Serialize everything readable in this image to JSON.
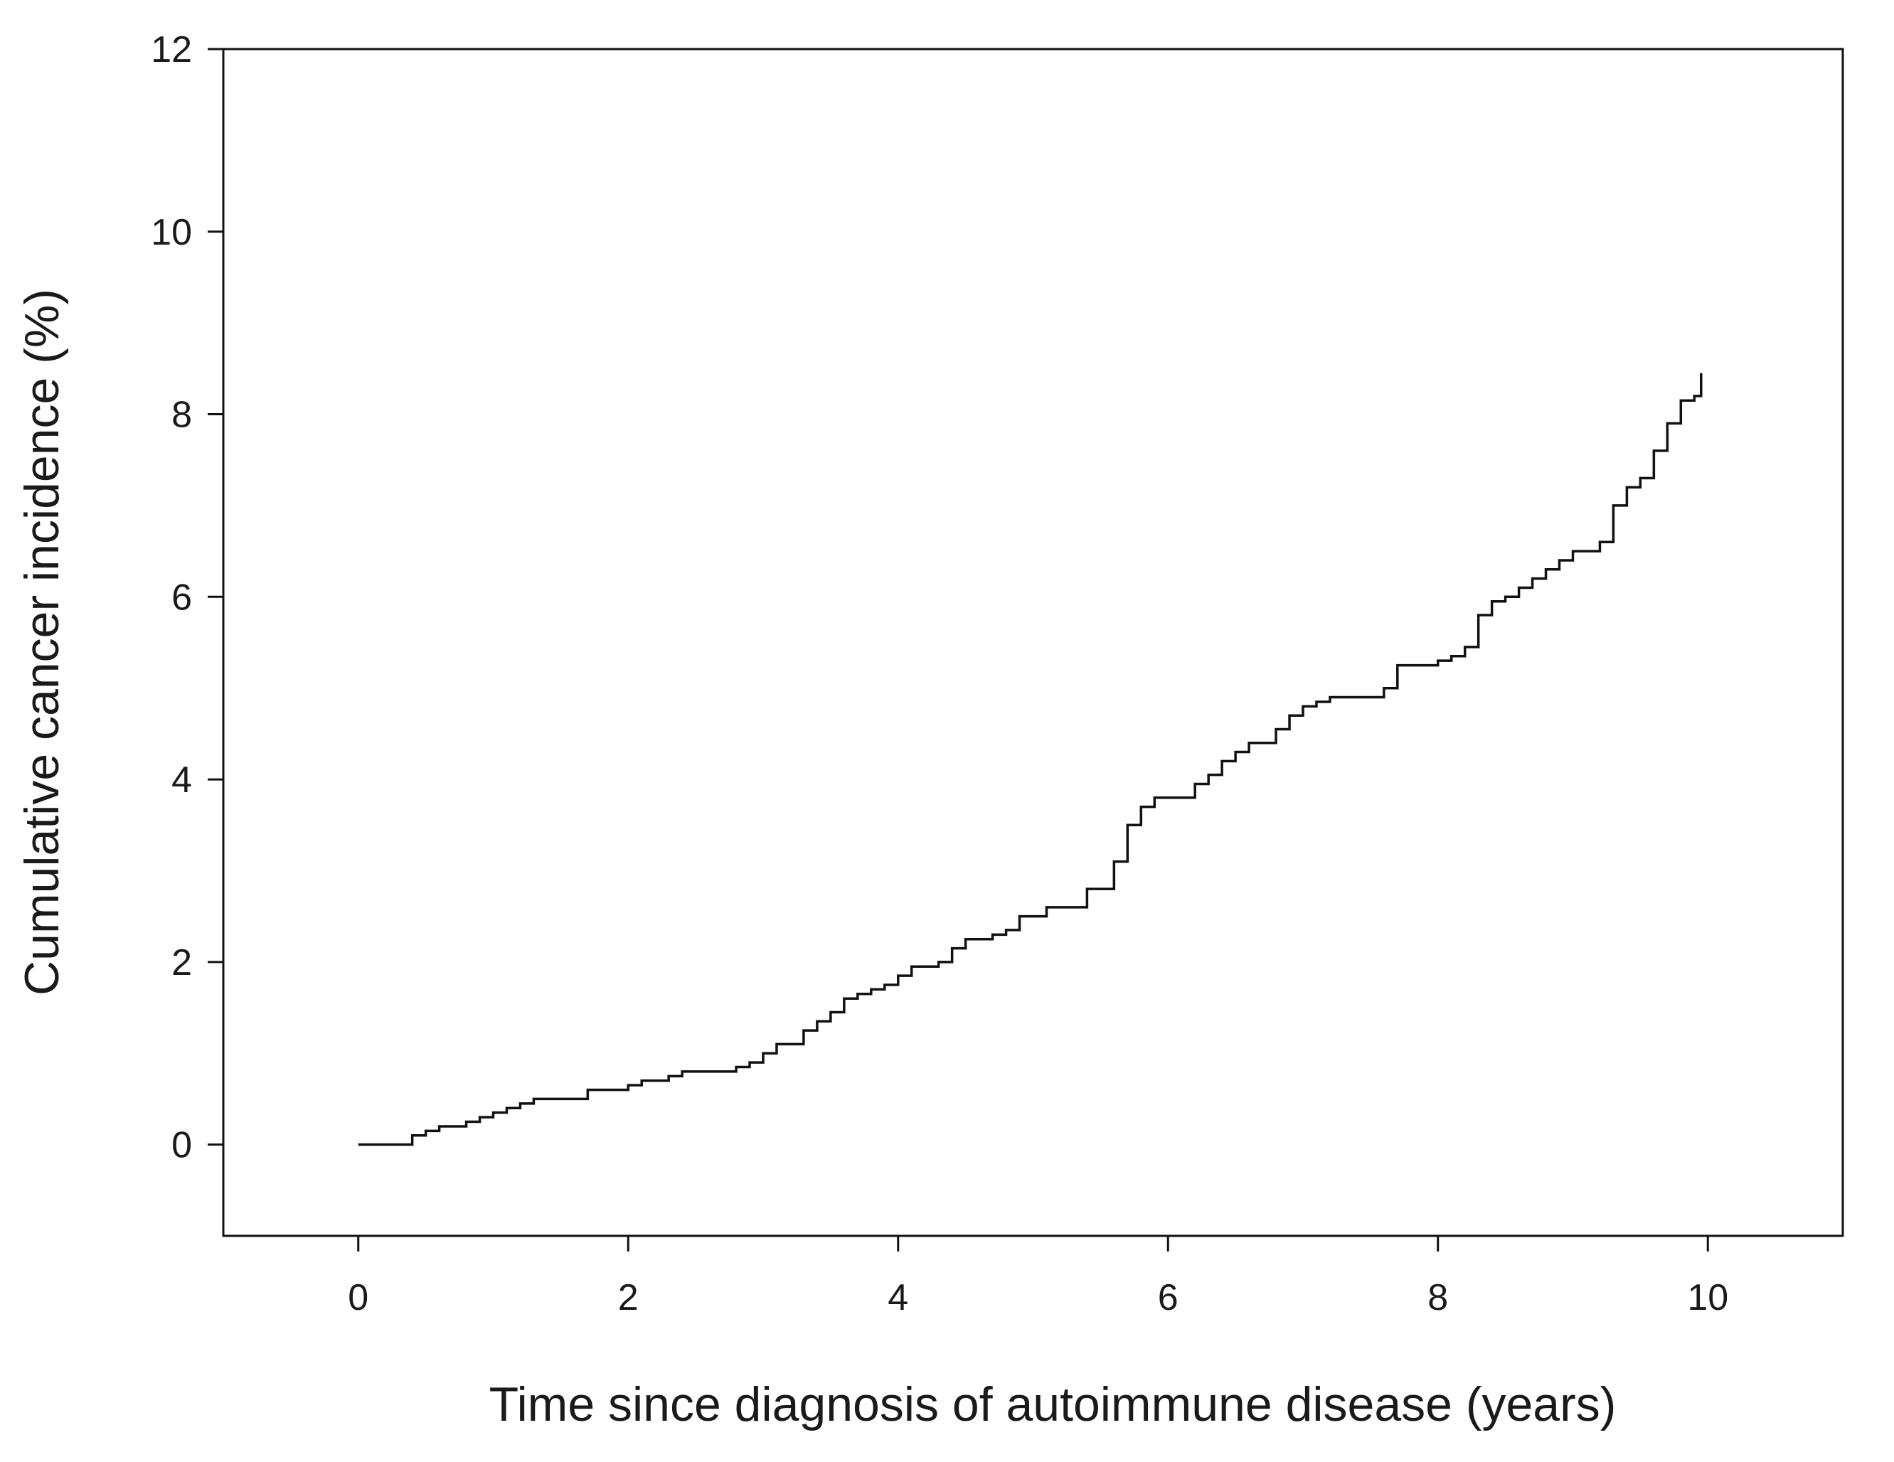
{
  "chart_data": {
    "type": "line",
    "title": "",
    "xlabel": "Time since diagnosis of autoimmune disease (years)",
    "ylabel": "Cumulative cancer incidence (%)",
    "xlim": [
      -1,
      11
    ],
    "ylim": [
      -1,
      12
    ],
    "x_ticks": [
      0,
      2,
      4,
      6,
      8,
      10
    ],
    "y_ticks": [
      0,
      2,
      4,
      6,
      8,
      10,
      12
    ],
    "x_tick_labels": [
      "0",
      "2",
      "4",
      "6",
      "8",
      "10"
    ],
    "y_tick_labels": [
      "0",
      "2",
      "4",
      "6",
      "8",
      "10",
      "12"
    ],
    "grid": false,
    "legend": "none",
    "line_style": "step",
    "line_color": "#111111",
    "series": [
      {
        "x": [
          0,
          0.3,
          0.4,
          0.5,
          0.6,
          0.8,
          0.9,
          1.0,
          1.1,
          1.2,
          1.3,
          1.6,
          1.7,
          2.0,
          2.1,
          2.3,
          2.4,
          2.7,
          2.8,
          2.9,
          3.0,
          3.1,
          3.3,
          3.4,
          3.5,
          3.6,
          3.7,
          3.8,
          3.9,
          4.0,
          4.1,
          4.3,
          4.4,
          4.5,
          4.7,
          4.8,
          4.9,
          5.1,
          5.3,
          5.4,
          5.6,
          5.7,
          5.8,
          5.9,
          6.1,
          6.2,
          6.3,
          6.4,
          6.5,
          6.6,
          6.8,
          6.9,
          7.0,
          7.1,
          7.2,
          7.5,
          7.6,
          7.7,
          8.0,
          8.1,
          8.2,
          8.3,
          8.4,
          8.5,
          8.6,
          8.7,
          8.8,
          8.9,
          9.0,
          9.2,
          9.3,
          9.4,
          9.5,
          9.6,
          9.7,
          9.8,
          9.9,
          9.95
        ],
        "y": [
          0,
          0,
          0.1,
          0.15,
          0.2,
          0.25,
          0.3,
          0.35,
          0.4,
          0.45,
          0.5,
          0.5,
          0.6,
          0.65,
          0.7,
          0.75,
          0.8,
          0.8,
          0.85,
          0.9,
          1.0,
          1.1,
          1.25,
          1.35,
          1.45,
          1.6,
          1.65,
          1.7,
          1.75,
          1.85,
          1.95,
          2.0,
          2.15,
          2.25,
          2.3,
          2.35,
          2.5,
          2.6,
          2.6,
          2.8,
          3.1,
          3.5,
          3.7,
          3.8,
          3.8,
          3.95,
          4.05,
          4.2,
          4.3,
          4.4,
          4.55,
          4.7,
          4.8,
          4.85,
          4.9,
          4.9,
          5.0,
          5.25,
          5.3,
          5.35,
          5.45,
          5.8,
          5.95,
          6.0,
          6.1,
          6.2,
          6.3,
          6.4,
          6.5,
          6.6,
          7.0,
          7.2,
          7.3,
          7.6,
          7.9,
          8.15,
          8.2,
          8.45
        ]
      }
    ]
  }
}
